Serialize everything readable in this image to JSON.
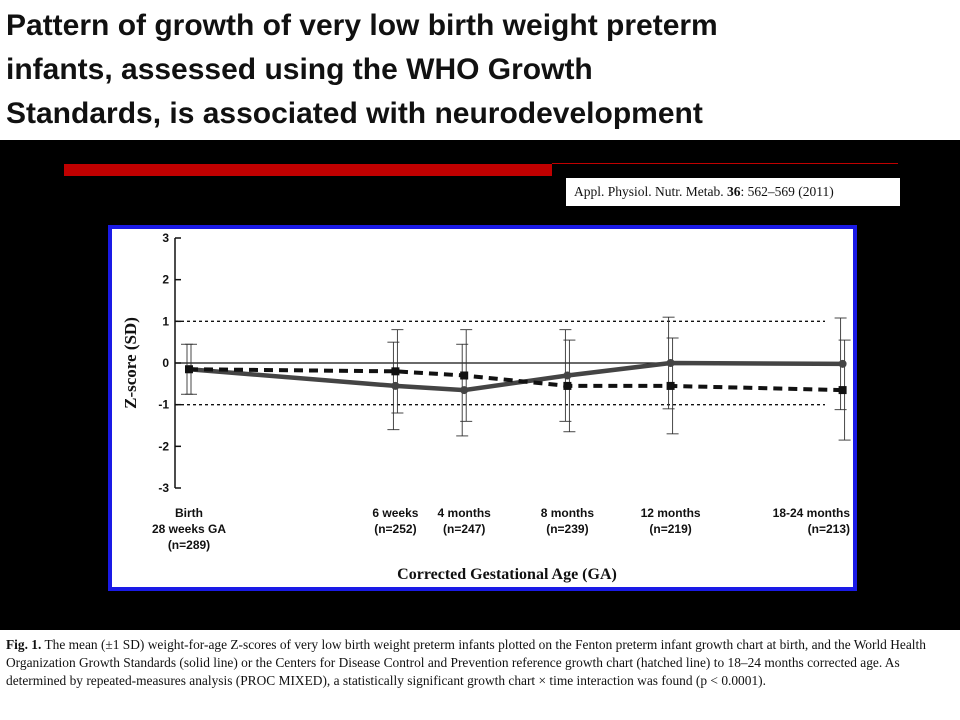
{
  "slide": {
    "title_lines": [
      "Pattern of growth of very low birth weight preterm",
      "infants, assessed using the WHO Growth",
      "Standards, is associated with neurodevelopment"
    ],
    "citation": {
      "journal": "Appl. Physiol. Nutr. Metab.",
      "volume": "36",
      "pages": ": 562–569 (2011)"
    },
    "colors": {
      "background": "#000000",
      "accent_bar": "#c00000",
      "chart_border": "#1a1ae6",
      "series": "#444444"
    }
  },
  "chart_data": {
    "type": "line",
    "title": "",
    "xlabel": "Corrected Gestational Age (GA)",
    "ylabel": "Z-score (SD)",
    "ylim": [
      -3,
      3
    ],
    "yticks": [
      3,
      2,
      1,
      0,
      -1,
      -2,
      -3
    ],
    "reference_lines": [
      1,
      -1
    ],
    "categories": [
      {
        "x": 0,
        "lines": [
          "Birth",
          "28 weeks GA",
          "(n=289)"
        ]
      },
      {
        "x": 6,
        "lines": [
          "6 weeks",
          "(n=252)"
        ]
      },
      {
        "x": 8,
        "lines": [
          "4 months",
          "(n=247)"
        ]
      },
      {
        "x": 11,
        "lines": [
          "8 months",
          "(n=239)"
        ]
      },
      {
        "x": 14,
        "lines": [
          "12 months",
          "(n=219)"
        ]
      },
      {
        "x": 19,
        "lines": [
          "18-24 months",
          "(n=213)"
        ]
      }
    ],
    "series": [
      {
        "style": "solid",
        "values": [
          -0.15,
          -0.55,
          -0.65,
          -0.3,
          0.0,
          -0.02
        ],
        "sd": [
          0.6,
          1.05,
          1.1,
          1.1,
          1.1,
          1.1
        ]
      },
      {
        "style": "dashed",
        "values": [
          -0.15,
          -0.2,
          -0.3,
          -0.55,
          -0.55,
          -0.65
        ],
        "sd": [
          0.6,
          1.0,
          1.1,
          1.1,
          1.15,
          1.2
        ]
      }
    ],
    "grid": false,
    "legend": "none"
  },
  "caption": {
    "label": "Fig. 1.",
    "text": " The mean (±1 SD) weight-for-age Z-scores of very low birth weight preterm infants plotted on the Fenton preterm infant growth chart at birth, and the World Health Organization Growth Standards (solid line) or the Centers for Disease Control and Prevention reference growth chart (hatched line) to 18–24 months corrected age. As determined by repeated-measures analysis (PROC MIXED), a statistically significant growth chart × time interaction was found (p < 0.0001)."
  }
}
